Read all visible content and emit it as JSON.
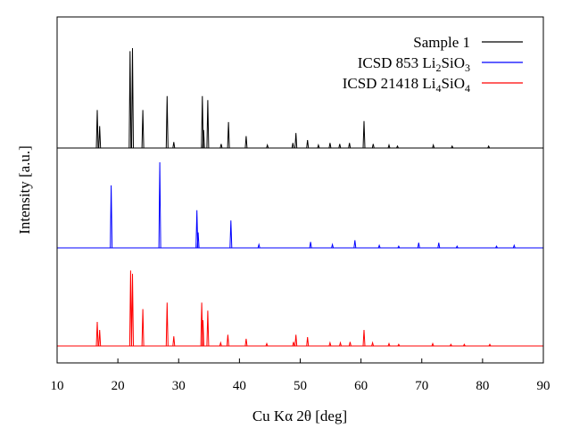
{
  "chart_data": {
    "type": "line",
    "xlabel": "Cu Kα 2θ [deg]",
    "ylabel": "Intensity [a.u.]",
    "xlim": [
      10,
      90
    ],
    "x_ticks": [
      10,
      20,
      30,
      40,
      50,
      60,
      70,
      80,
      90
    ],
    "y_ticks_shown": false,
    "grid": false,
    "legend_position": "top-right",
    "layout": "stacked vertical offset, sample on top, references below",
    "series": [
      {
        "name": "Sample 1",
        "legend_label": {
          "prefix": "Sample 1",
          "parts": []
        },
        "color": "#000000",
        "peaks": [
          {
            "x": 16.6,
            "y": 0.38
          },
          {
            "x": 17.0,
            "y": 0.22
          },
          {
            "x": 22.0,
            "y": 0.97
          },
          {
            "x": 22.4,
            "y": 1.0
          },
          {
            "x": 24.1,
            "y": 0.38
          },
          {
            "x": 28.1,
            "y": 0.52
          },
          {
            "x": 29.2,
            "y": 0.06
          },
          {
            "x": 33.9,
            "y": 0.52
          },
          {
            "x": 34.1,
            "y": 0.18
          },
          {
            "x": 34.8,
            "y": 0.48
          },
          {
            "x": 37.0,
            "y": 0.04
          },
          {
            "x": 38.2,
            "y": 0.26
          },
          {
            "x": 41.1,
            "y": 0.12
          },
          {
            "x": 44.6,
            "y": 0.03
          },
          {
            "x": 48.8,
            "y": 0.05
          },
          {
            "x": 49.3,
            "y": 0.15
          },
          {
            "x": 51.2,
            "y": 0.08
          },
          {
            "x": 53.0,
            "y": 0.03
          },
          {
            "x": 54.9,
            "y": 0.05
          },
          {
            "x": 56.5,
            "y": 0.04
          },
          {
            "x": 58.1,
            "y": 0.05
          },
          {
            "x": 60.5,
            "y": 0.27
          },
          {
            "x": 62.0,
            "y": 0.04
          },
          {
            "x": 64.6,
            "y": 0.03
          },
          {
            "x": 66.0,
            "y": 0.02
          },
          {
            "x": 71.9,
            "y": 0.03
          },
          {
            "x": 75.0,
            "y": 0.02
          },
          {
            "x": 81.0,
            "y": 0.02
          }
        ]
      },
      {
        "name": "ICSD 853 Li2SiO3",
        "legend_label": {
          "prefix": "ICSD 853 Li",
          "parts": [
            [
              "2",
              "sub"
            ],
            [
              "SiO",
              ""
            ],
            [
              "3",
              "sub"
            ]
          ]
        },
        "color": "#0000ff",
        "peaks": [
          {
            "x": 18.9,
            "y": 0.73
          },
          {
            "x": 26.9,
            "y": 1.0
          },
          {
            "x": 33.0,
            "y": 0.44
          },
          {
            "x": 33.2,
            "y": 0.18
          },
          {
            "x": 38.6,
            "y": 0.32
          },
          {
            "x": 43.2,
            "y": 0.04
          },
          {
            "x": 51.7,
            "y": 0.07
          },
          {
            "x": 55.3,
            "y": 0.04
          },
          {
            "x": 59.0,
            "y": 0.09
          },
          {
            "x": 63.0,
            "y": 0.03
          },
          {
            "x": 66.2,
            "y": 0.02
          },
          {
            "x": 69.5,
            "y": 0.06
          },
          {
            "x": 72.8,
            "y": 0.06
          },
          {
            "x": 75.8,
            "y": 0.02
          },
          {
            "x": 82.3,
            "y": 0.02
          },
          {
            "x": 85.2,
            "y": 0.03
          }
        ]
      },
      {
        "name": "ICSD 21418 Li4SiO4",
        "legend_label": {
          "prefix": "ICSD 21418 Li",
          "parts": [
            [
              "4",
              "sub"
            ],
            [
              "SiO",
              ""
            ],
            [
              "4",
              "sub"
            ]
          ]
        },
        "color": "#ff0000",
        "peaks": [
          {
            "x": 16.6,
            "y": 0.3
          },
          {
            "x": 17.0,
            "y": 0.2
          },
          {
            "x": 22.1,
            "y": 0.94
          },
          {
            "x": 22.4,
            "y": 0.9
          },
          {
            "x": 24.1,
            "y": 0.46
          },
          {
            "x": 28.1,
            "y": 0.54
          },
          {
            "x": 29.2,
            "y": 0.12
          },
          {
            "x": 33.8,
            "y": 0.54
          },
          {
            "x": 34.0,
            "y": 0.32
          },
          {
            "x": 34.8,
            "y": 0.44
          },
          {
            "x": 36.9,
            "y": 0.04
          },
          {
            "x": 38.1,
            "y": 0.14
          },
          {
            "x": 41.1,
            "y": 0.09
          },
          {
            "x": 44.5,
            "y": 0.03
          },
          {
            "x": 48.9,
            "y": 0.05
          },
          {
            "x": 49.3,
            "y": 0.14
          },
          {
            "x": 51.2,
            "y": 0.11
          },
          {
            "x": 54.9,
            "y": 0.04
          },
          {
            "x": 56.6,
            "y": 0.04
          },
          {
            "x": 58.2,
            "y": 0.05
          },
          {
            "x": 60.5,
            "y": 0.2
          },
          {
            "x": 61.9,
            "y": 0.04
          },
          {
            "x": 64.6,
            "y": 0.03
          },
          {
            "x": 66.2,
            "y": 0.02
          },
          {
            "x": 71.8,
            "y": 0.03
          },
          {
            "x": 74.8,
            "y": 0.02
          },
          {
            "x": 77.0,
            "y": 0.02
          },
          {
            "x": 81.2,
            "y": 0.02
          }
        ]
      }
    ]
  }
}
